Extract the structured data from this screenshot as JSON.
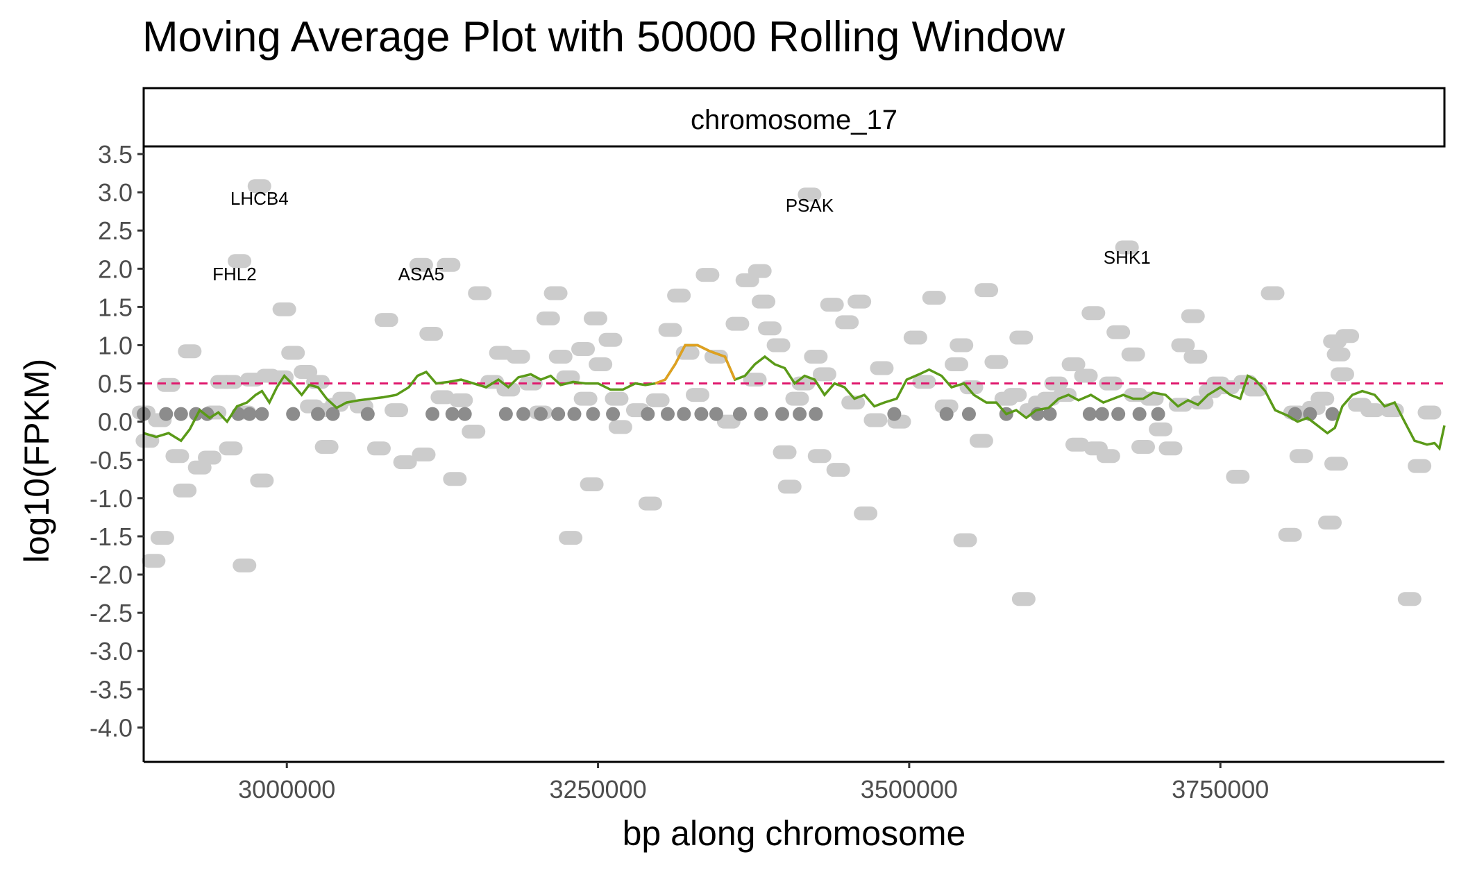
{
  "chart_data": {
    "type": "scatter",
    "title": "Moving Average Plot with 50000 Rolling Window",
    "facet_label": "chromosome_17",
    "xlabel": "bp along chromosome",
    "ylabel": "log10(FPKM)",
    "xlim": [
      2885000,
      3930000
    ],
    "ylim": [
      -4.45,
      3.6
    ],
    "x_ticks": [
      3000000,
      3250000,
      3500000,
      3750000
    ],
    "x_tick_labels": [
      "3000000",
      "3250000",
      "3500000",
      "3750000"
    ],
    "y_ticks": [
      3.5,
      3.0,
      2.5,
      2.0,
      1.5,
      1.0,
      0.5,
      0.0,
      -0.5,
      -1.0,
      -1.5,
      -2.0,
      -2.5,
      -3.0,
      -3.5,
      -4.0
    ],
    "y_tick_labels": [
      "3.5",
      "3.0",
      "2.5",
      "2.0",
      "1.5",
      "1.0",
      "0.5",
      "0.0",
      "-0.5",
      "-1.0",
      "-1.5",
      "-2.0",
      "-2.5",
      "-3.0",
      "-3.5",
      "-4.0"
    ],
    "threshold": {
      "y": 0.5,
      "color": "#e0196e"
    },
    "grid": false,
    "colors": {
      "gene_points": "#cccccc",
      "baseline_points": "#8c8c8c",
      "moving_average": "#5a9a18",
      "highlight": "#e0a020"
    },
    "gene_points": [
      [
        2885000,
        0.12
      ],
      [
        2888000,
        -0.25
      ],
      [
        2893000,
        -1.82
      ],
      [
        2898000,
        0.02
      ],
      [
        2900000,
        -1.52
      ],
      [
        2905000,
        0.48
      ],
      [
        2912000,
        -0.45
      ],
      [
        2918000,
        -0.9
      ],
      [
        2922000,
        0.92
      ],
      [
        2930000,
        -0.6
      ],
      [
        2938000,
        -0.47
      ],
      [
        2942000,
        0.12
      ],
      [
        2948000,
        0.52
      ],
      [
        2955000,
        0.52
      ],
      [
        2955000,
        -0.35
      ],
      [
        2962000,
        2.1
      ],
      [
        2966000,
        0.12
      ],
      [
        2966000,
        -1.88
      ],
      [
        2972000,
        0.55
      ],
      [
        2978000,
        3.08
      ],
      [
        2980000,
        -0.77
      ],
      [
        2985000,
        0.6
      ],
      [
        2996000,
        0.58
      ],
      [
        2998000,
        1.47
      ],
      [
        3005000,
        0.9
      ],
      [
        3015000,
        0.65
      ],
      [
        3020000,
        0.2
      ],
      [
        3025000,
        0.52
      ],
      [
        3030000,
        0.15
      ],
      [
        3032000,
        -0.33
      ],
      [
        3040000,
        0.22
      ],
      [
        3046000,
        0.3
      ],
      [
        3060000,
        0.2
      ],
      [
        3074000,
        -0.35
      ],
      [
        3080000,
        1.33
      ],
      [
        3088000,
        0.15
      ],
      [
        3095000,
        -0.53
      ],
      [
        3108000,
        2.05
      ],
      [
        3110000,
        -0.43
      ],
      [
        3116000,
        1.15
      ],
      [
        3125000,
        0.32
      ],
      [
        3130000,
        2.05
      ],
      [
        3135000,
        -0.75
      ],
      [
        3140000,
        0.28
      ],
      [
        3150000,
        -0.13
      ],
      [
        3155000,
        1.68
      ],
      [
        3165000,
        0.52
      ],
      [
        3172000,
        0.9
      ],
      [
        3178000,
        0.42
      ],
      [
        3186000,
        0.85
      ],
      [
        3196000,
        0.5
      ],
      [
        3204000,
        0.12
      ],
      [
        3210000,
        1.35
      ],
      [
        3216000,
        1.68
      ],
      [
        3220000,
        0.85
      ],
      [
        3226000,
        0.58
      ],
      [
        3228000,
        -1.52
      ],
      [
        3238000,
        0.95
      ],
      [
        3240000,
        0.3
      ],
      [
        3245000,
        -0.82
      ],
      [
        3248000,
        1.35
      ],
      [
        3252000,
        0.75
      ],
      [
        3260000,
        1.07
      ],
      [
        3265000,
        0.3
      ],
      [
        3268000,
        -0.07
      ],
      [
        3282000,
        0.15
      ],
      [
        3292000,
        -1.07
      ],
      [
        3298000,
        0.28
      ],
      [
        3308000,
        1.2
      ],
      [
        3315000,
        1.65
      ],
      [
        3322000,
        0.9
      ],
      [
        3330000,
        0.35
      ],
      [
        3338000,
        1.92
      ],
      [
        3345000,
        0.85
      ],
      [
        3355000,
        0.0
      ],
      [
        3362000,
        1.28
      ],
      [
        3370000,
        1.85
      ],
      [
        3376000,
        0.55
      ],
      [
        3380000,
        1.97
      ],
      [
        3383000,
        1.57
      ],
      [
        3388000,
        1.22
      ],
      [
        3395000,
        1.0
      ],
      [
        3400000,
        -0.4
      ],
      [
        3404000,
        -0.85
      ],
      [
        3410000,
        0.3
      ],
      [
        3415000,
        0.5
      ],
      [
        3420000,
        2.97
      ],
      [
        3425000,
        0.85
      ],
      [
        3428000,
        -0.45
      ],
      [
        3432000,
        0.62
      ],
      [
        3438000,
        1.53
      ],
      [
        3443000,
        -0.63
      ],
      [
        3450000,
        1.3
      ],
      [
        3455000,
        0.25
      ],
      [
        3460000,
        1.57
      ],
      [
        3465000,
        -1.2
      ],
      [
        3473000,
        0.02
      ],
      [
        3478000,
        0.7
      ],
      [
        3492000,
        0.0
      ],
      [
        3505000,
        1.1
      ],
      [
        3512000,
        0.52
      ],
      [
        3520000,
        1.62
      ],
      [
        3530000,
        0.2
      ],
      [
        3538000,
        0.75
      ],
      [
        3542000,
        1.0
      ],
      [
        3545000,
        -1.55
      ],
      [
        3550000,
        0.45
      ],
      [
        3558000,
        -0.25
      ],
      [
        3562000,
        1.72
      ],
      [
        3570000,
        0.78
      ],
      [
        3578000,
        0.3
      ],
      [
        3585000,
        0.35
      ],
      [
        3590000,
        1.1
      ],
      [
        3592000,
        -2.32
      ],
      [
        3598000,
        0.15
      ],
      [
        3605000,
        0.25
      ],
      [
        3612000,
        0.3
      ],
      [
        3618000,
        0.5
      ],
      [
        3625000,
        0.35
      ],
      [
        3632000,
        0.75
      ],
      [
        3635000,
        -0.3
      ],
      [
        3642000,
        0.6
      ],
      [
        3648000,
        1.42
      ],
      [
        3650000,
        -0.35
      ],
      [
        3660000,
        -0.45
      ],
      [
        3662000,
        0.5
      ],
      [
        3668000,
        1.17
      ],
      [
        3675000,
        2.28
      ],
      [
        3680000,
        0.88
      ],
      [
        3682000,
        0.35
      ],
      [
        3688000,
        -0.33
      ],
      [
        3695000,
        0.3
      ],
      [
        3702000,
        -0.1
      ],
      [
        3710000,
        -0.35
      ],
      [
        3718000,
        0.22
      ],
      [
        3720000,
        1.0
      ],
      [
        3728000,
        1.38
      ],
      [
        3730000,
        0.85
      ],
      [
        3735000,
        0.25
      ],
      [
        3742000,
        0.4
      ],
      [
        3748000,
        0.5
      ],
      [
        3756000,
        0.45
      ],
      [
        3764000,
        -0.72
      ],
      [
        3770000,
        0.52
      ],
      [
        3778000,
        0.42
      ],
      [
        3792000,
        1.68
      ],
      [
        3806000,
        -1.48
      ],
      [
        3810000,
        0.12
      ],
      [
        3815000,
        -0.45
      ],
      [
        3825000,
        0.18
      ],
      [
        3832000,
        0.3
      ],
      [
        3838000,
        -1.32
      ],
      [
        3842000,
        1.05
      ],
      [
        3843000,
        -0.55
      ],
      [
        3845000,
        0.88
      ],
      [
        3848000,
        0.62
      ],
      [
        3852000,
        1.12
      ],
      [
        3862000,
        0.22
      ],
      [
        3872000,
        0.15
      ],
      [
        3888000,
        0.15
      ],
      [
        3902000,
        -2.32
      ],
      [
        3910000,
        -0.58
      ],
      [
        3918000,
        0.12
      ]
    ],
    "baseline_points": [
      [
        2885000,
        0.1
      ],
      [
        2903000,
        0.1
      ],
      [
        2915000,
        0.1
      ],
      [
        2927000,
        0.1
      ],
      [
        2936000,
        0.1
      ],
      [
        2961000,
        0.1
      ],
      [
        2970000,
        0.1
      ],
      [
        2980000,
        0.1
      ],
      [
        3005000,
        0.1
      ],
      [
        3025000,
        0.1
      ],
      [
        3037000,
        0.1
      ],
      [
        3065000,
        0.1
      ],
      [
        3117000,
        0.1
      ],
      [
        3133000,
        0.1
      ],
      [
        3143000,
        0.1
      ],
      [
        3176000,
        0.1
      ],
      [
        3190000,
        0.1
      ],
      [
        3204000,
        0.1
      ],
      [
        3218000,
        0.1
      ],
      [
        3231000,
        0.1
      ],
      [
        3246000,
        0.1
      ],
      [
        3262000,
        0.1
      ],
      [
        3290000,
        0.1
      ],
      [
        3306000,
        0.1
      ],
      [
        3319000,
        0.1
      ],
      [
        3333000,
        0.1
      ],
      [
        3345000,
        0.1
      ],
      [
        3364000,
        0.1
      ],
      [
        3381000,
        0.1
      ],
      [
        3398000,
        0.1
      ],
      [
        3412000,
        0.1
      ],
      [
        3425000,
        0.1
      ],
      [
        3488000,
        0.1
      ],
      [
        3530000,
        0.1
      ],
      [
        3548000,
        0.1
      ],
      [
        3578000,
        0.1
      ],
      [
        3603000,
        0.1
      ],
      [
        3613000,
        0.1
      ],
      [
        3645000,
        0.1
      ],
      [
        3655000,
        0.1
      ],
      [
        3668000,
        0.1
      ],
      [
        3685000,
        0.1
      ],
      [
        3700000,
        0.1
      ],
      [
        3810000,
        0.1
      ],
      [
        3822000,
        0.1
      ],
      [
        3840000,
        0.1
      ]
    ],
    "moving_average": [
      [
        2885000,
        -0.15
      ],
      [
        2895000,
        -0.2
      ],
      [
        2905000,
        -0.15
      ],
      [
        2915000,
        -0.25
      ],
      [
        2922000,
        -0.1
      ],
      [
        2930000,
        0.15
      ],
      [
        2938000,
        0.05
      ],
      [
        2945000,
        0.12
      ],
      [
        2952000,
        0.0
      ],
      [
        2960000,
        0.2
      ],
      [
        2968000,
        0.25
      ],
      [
        2975000,
        0.35
      ],
      [
        2980000,
        0.4
      ],
      [
        2986000,
        0.25
      ],
      [
        2992000,
        0.45
      ],
      [
        2998000,
        0.6
      ],
      [
        3004000,
        0.5
      ],
      [
        3012000,
        0.35
      ],
      [
        3018000,
        0.48
      ],
      [
        3025000,
        0.45
      ],
      [
        3032000,
        0.3
      ],
      [
        3040000,
        0.18
      ],
      [
        3048000,
        0.25
      ],
      [
        3058000,
        0.28
      ],
      [
        3068000,
        0.3
      ],
      [
        3078000,
        0.32
      ],
      [
        3088000,
        0.35
      ],
      [
        3098000,
        0.45
      ],
      [
        3105000,
        0.6
      ],
      [
        3112000,
        0.65
      ],
      [
        3120000,
        0.5
      ],
      [
        3130000,
        0.52
      ],
      [
        3140000,
        0.55
      ],
      [
        3150000,
        0.5
      ],
      [
        3160000,
        0.45
      ],
      [
        3170000,
        0.55
      ],
      [
        3178000,
        0.45
      ],
      [
        3186000,
        0.58
      ],
      [
        3196000,
        0.62
      ],
      [
        3204000,
        0.55
      ],
      [
        3212000,
        0.6
      ],
      [
        3220000,
        0.48
      ],
      [
        3230000,
        0.52
      ],
      [
        3240000,
        0.5
      ],
      [
        3250000,
        0.5
      ],
      [
        3260000,
        0.42
      ],
      [
        3270000,
        0.42
      ],
      [
        3280000,
        0.5
      ],
      [
        3288000,
        0.48
      ],
      [
        3296000,
        0.5
      ],
      [
        3304000,
        0.55
      ],
      [
        3312000,
        0.75
      ],
      [
        3320000,
        1.0
      ],
      [
        3330000,
        1.0
      ],
      [
        3340000,
        0.92
      ],
      [
        3352000,
        0.85
      ],
      [
        3360000,
        0.55
      ],
      [
        3368000,
        0.6
      ],
      [
        3376000,
        0.75
      ],
      [
        3384000,
        0.85
      ],
      [
        3392000,
        0.75
      ],
      [
        3400000,
        0.7
      ],
      [
        3408000,
        0.5
      ],
      [
        3416000,
        0.6
      ],
      [
        3424000,
        0.55
      ],
      [
        3432000,
        0.35
      ],
      [
        3440000,
        0.5
      ],
      [
        3448000,
        0.45
      ],
      [
        3456000,
        0.3
      ],
      [
        3464000,
        0.35
      ],
      [
        3472000,
        0.2
      ],
      [
        3480000,
        0.25
      ],
      [
        3490000,
        0.3
      ],
      [
        3498000,
        0.55
      ],
      [
        3508000,
        0.62
      ],
      [
        3516000,
        0.68
      ],
      [
        3526000,
        0.6
      ],
      [
        3534000,
        0.45
      ],
      [
        3544000,
        0.5
      ],
      [
        3552000,
        0.35
      ],
      [
        3562000,
        0.25
      ],
      [
        3570000,
        0.25
      ],
      [
        3578000,
        0.1
      ],
      [
        3586000,
        0.15
      ],
      [
        3594000,
        0.05
      ],
      [
        3602000,
        0.15
      ],
      [
        3612000,
        0.18
      ],
      [
        3620000,
        0.3
      ],
      [
        3628000,
        0.35
      ],
      [
        3636000,
        0.28
      ],
      [
        3646000,
        0.35
      ],
      [
        3656000,
        0.25
      ],
      [
        3664000,
        0.3
      ],
      [
        3672000,
        0.35
      ],
      [
        3680000,
        0.3
      ],
      [
        3688000,
        0.3
      ],
      [
        3696000,
        0.38
      ],
      [
        3706000,
        0.35
      ],
      [
        3716000,
        0.2
      ],
      [
        3724000,
        0.28
      ],
      [
        3732000,
        0.22
      ],
      [
        3740000,
        0.35
      ],
      [
        3750000,
        0.45
      ],
      [
        3758000,
        0.35
      ],
      [
        3766000,
        0.3
      ],
      [
        3772000,
        0.6
      ],
      [
        3778000,
        0.55
      ],
      [
        3786000,
        0.4
      ],
      [
        3794000,
        0.15
      ],
      [
        3804000,
        0.08
      ],
      [
        3812000,
        0.0
      ],
      [
        3820000,
        0.05
      ],
      [
        3828000,
        -0.05
      ],
      [
        3836000,
        -0.15
      ],
      [
        3842000,
        -0.08
      ],
      [
        3848000,
        0.2
      ],
      [
        3856000,
        0.35
      ],
      [
        3864000,
        0.4
      ],
      [
        3874000,
        0.35
      ],
      [
        3882000,
        0.2
      ],
      [
        3890000,
        0.25
      ],
      [
        3898000,
        0.0
      ],
      [
        3906000,
        -0.25
      ],
      [
        3916000,
        -0.3
      ],
      [
        3922000,
        -0.28
      ],
      [
        3926000,
        -0.35
      ],
      [
        3930000,
        -0.05
      ]
    ],
    "highlight_segment": [
      [
        3296000,
        0.5
      ],
      [
        3304000,
        0.55
      ],
      [
        3312000,
        0.75
      ],
      [
        3320000,
        1.0
      ],
      [
        3330000,
        1.0
      ],
      [
        3340000,
        0.92
      ],
      [
        3352000,
        0.85
      ],
      [
        3360000,
        0.55
      ]
    ],
    "annotations": [
      {
        "text": "LHCB4",
        "x": 2978000,
        "y": 2.92
      },
      {
        "text": "PSAK",
        "x": 3420000,
        "y": 2.83
      },
      {
        "text": "FHL2",
        "x": 2958000,
        "y": 1.93
      },
      {
        "text": "ASA5",
        "x": 3108000,
        "y": 1.93
      },
      {
        "text": "SHK1",
        "x": 3675000,
        "y": 2.15
      }
    ]
  }
}
